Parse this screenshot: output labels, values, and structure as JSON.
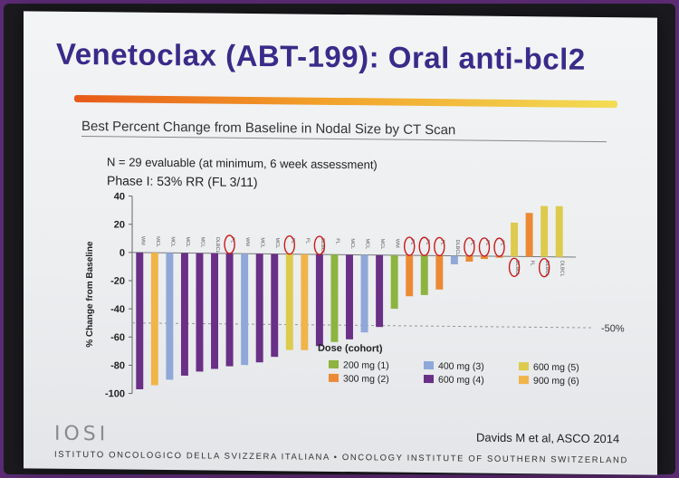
{
  "slide": {
    "title": "Venetoclax (ABT-199): Oral anti-bcl2",
    "subtitle": "Best Percent Change from Baseline in Nodal Size by CT Scan",
    "n_text": "N = 29 evaluable (at minimum, 6 week assessment)",
    "phase_text": "Phase I: 53% RR  (FL 3/11)",
    "citation": "Davids  M et al, ASCO 2014",
    "logo": "IOSI",
    "footer": "ISTITUTO ONCOLOGICO DELLA SVIZZERA ITALIANA  •  ONCOLOGY INSTITUTE OF SOUTHERN SWITZERLAND"
  },
  "colors": {
    "200 mg (1)": "#8db43e",
    "300 mg (2)": "#ec8a34",
    "400 mg (3)": "#8fa8d8",
    "600 mg (4)": "#6a2f86",
    "600 mg (5)": "#dccb4c",
    "900 mg (6)": "#f1b448",
    "circle": "#cc1a1a",
    "refline": "#999999"
  },
  "chart_data": {
    "type": "bar",
    "ylabel": "% Change from Baseline",
    "ylim": [
      -100,
      40
    ],
    "yticks": [
      40,
      20,
      0,
      -20,
      -40,
      -60,
      -80,
      -100
    ],
    "reference_line": {
      "value": -50,
      "label": "-50%"
    },
    "legend_title": "Dose (cohort)",
    "legend": [
      "200 mg (1)",
      "400 mg (3)",
      "600 mg (5)",
      "300 mg (2)",
      "600 mg (4)",
      "900 mg (6)"
    ],
    "categories": [
      "WM",
      "MCL",
      "MCL",
      "MCL",
      "MCL",
      "DLBCL",
      "FL",
      "WM",
      "MCL",
      "MCL",
      "FL",
      "FL",
      "DLBCL",
      "FL",
      "MCL",
      "MCL",
      "MCL",
      "WM",
      "FL",
      "FL",
      "FL",
      "DLBCL",
      "FL",
      "FL",
      "FL",
      "DLBCL",
      "FL",
      "DLBCL",
      "DLBCL"
    ],
    "values": [
      -97,
      -94,
      -90,
      -87,
      -84,
      -82,
      -80,
      -79,
      -77,
      -73,
      -68,
      -68,
      -65,
      -62,
      -60,
      -55,
      -51,
      -38,
      -29,
      -28,
      -24,
      -6,
      -4,
      -2,
      -1,
      24,
      31,
      36,
      36
    ],
    "doses": [
      "600 mg (4)",
      "900 mg (6)",
      "400 mg (3)",
      "600 mg (4)",
      "600 mg (4)",
      "600 mg (4)",
      "600 mg (4)",
      "400 mg (3)",
      "600 mg (4)",
      "600 mg (4)",
      "600 mg (5)",
      "900 mg (6)",
      "600 mg (4)",
      "200 mg (1)",
      "600 mg (4)",
      "400 mg (3)",
      "600 mg (4)",
      "200 mg (1)",
      "300 mg (2)",
      "200 mg (1)",
      "300 mg (2)",
      "400 mg (3)",
      "300 mg (2)",
      "300 mg (2)",
      "300 mg (2)",
      "600 mg (5)",
      "300 mg (2)",
      "600 mg (5)",
      "600 mg (5)"
    ],
    "circled": [
      6,
      10,
      12,
      18,
      19,
      20,
      22,
      23,
      24,
      25,
      27
    ]
  }
}
